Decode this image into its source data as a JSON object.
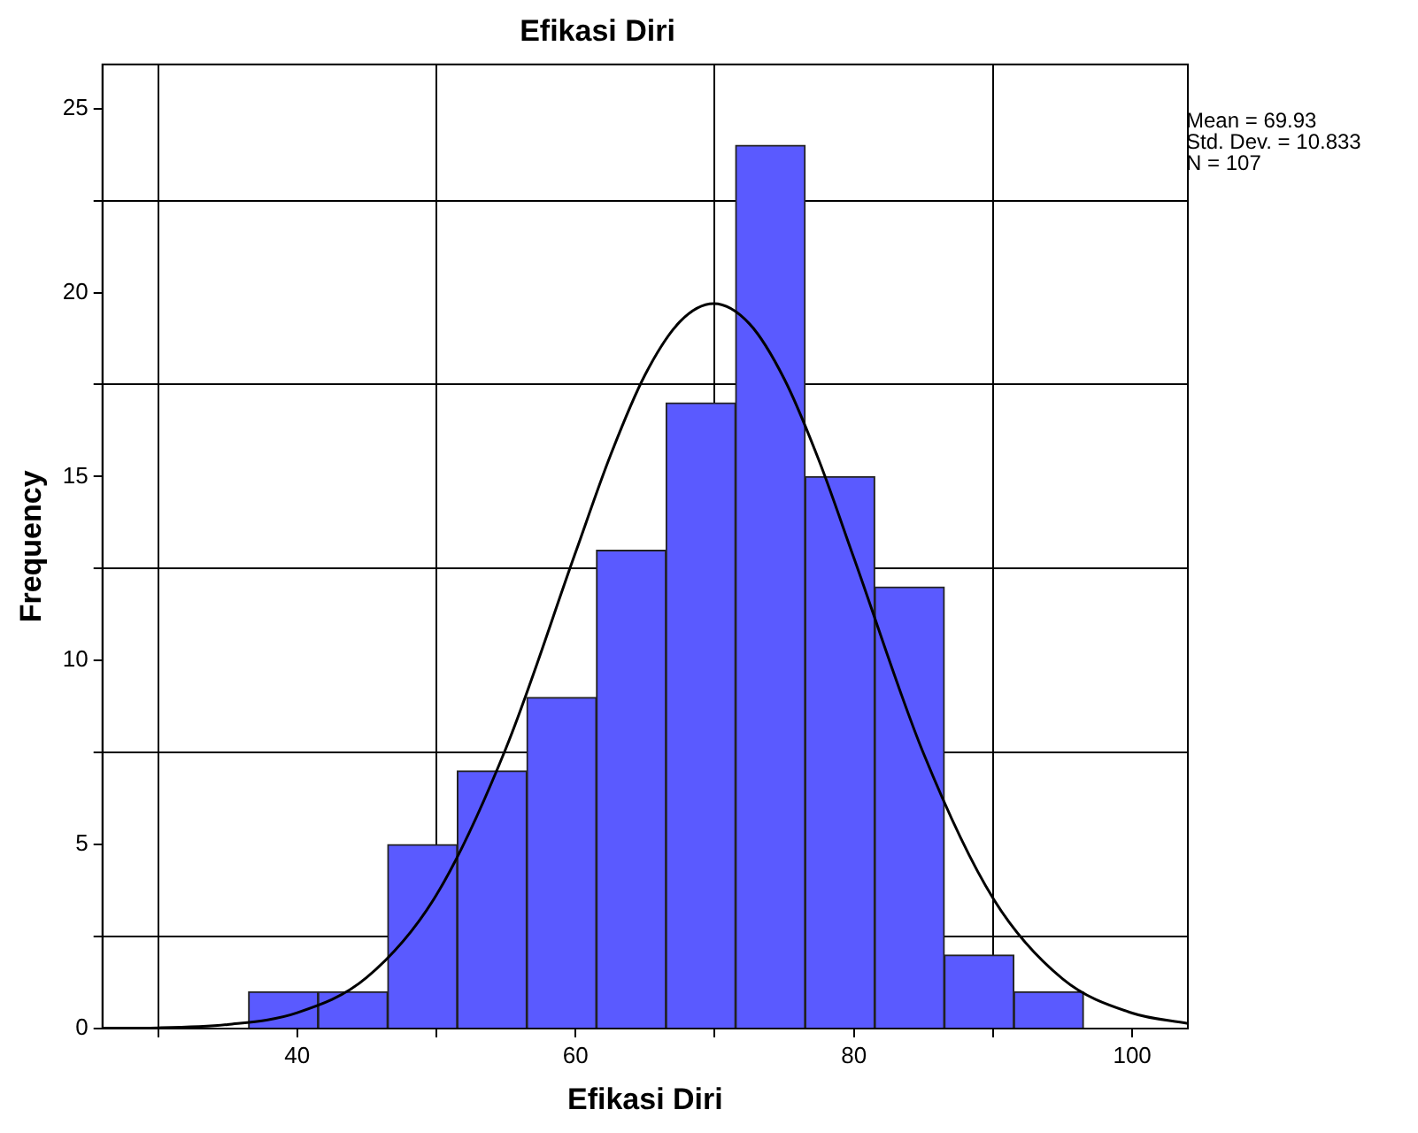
{
  "chart_data": {
    "type": "histogram",
    "title": "Efikasi Diri",
    "xlabel": "Efikasi Diri",
    "ylabel": "Frequency",
    "bins": [
      36.5,
      41.5,
      46.5,
      51.5,
      56.5,
      61.5,
      66.5,
      71.5,
      76.5,
      81.5,
      86.5,
      91.5,
      96.5
    ],
    "values": [
      1,
      1,
      5,
      7,
      9,
      13,
      17,
      24,
      15,
      12,
      2,
      1
    ],
    "color": "#5a5aff",
    "series": [
      {
        "type": "line",
        "color": "#000000",
        "marker": "none",
        "x": [
          26,
          30,
          35,
          40,
          45,
          50,
          55,
          60,
          62.5,
          65,
          67.5,
          69.93,
          72.5,
          75,
          77.5,
          80,
          85,
          90,
          95,
          100,
          104
        ],
        "values": [
          0.01,
          0.02,
          0.11,
          0.43,
          1.39,
          3.63,
          7.62,
          12.94,
          15.57,
          17.77,
          19.21,
          19.7,
          19.15,
          17.65,
          15.43,
          12.79,
          7.48,
          3.54,
          1.35,
          0.42,
          0.14
        ]
      }
    ],
    "xlim": [
      26,
      104
    ],
    "xticks": [
      {
        "value": 30,
        "label": null
      },
      40,
      {
        "value": 50,
        "label": null
      },
      60,
      {
        "value": 70,
        "label": null
      },
      80,
      {
        "value": 90,
        "label": null
      },
      100
    ],
    "ylim": [
      0,
      26.2
    ],
    "yticks": [
      0,
      {
        "value": 2.5,
        "label": null
      },
      5,
      {
        "value": 7.5,
        "label": null
      },
      10,
      {
        "value": 12.5,
        "label": null
      },
      15,
      {
        "value": 17.5,
        "label": null
      },
      20,
      {
        "value": 22.5,
        "label": null
      },
      25
    ],
    "grid": true,
    "legend": false,
    "annotations": [
      "Mean = 69.93",
      "Std. Dev. = 10.833",
      "N = 107"
    ]
  }
}
